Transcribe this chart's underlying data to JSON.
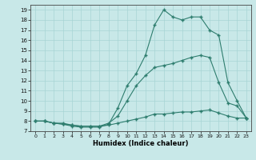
{
  "title": "",
  "xlabel": "Humidex (Indice chaleur)",
  "bg_color": "#c8e8e8",
  "line_color": "#2e7d6e",
  "grid_color": "#a8d4d4",
  "xlim": [
    -0.5,
    23.5
  ],
  "ylim": [
    7,
    19.5
  ],
  "xticks": [
    0,
    1,
    2,
    3,
    4,
    5,
    6,
    7,
    8,
    9,
    10,
    11,
    12,
    13,
    14,
    15,
    16,
    17,
    18,
    19,
    20,
    21,
    22,
    23
  ],
  "yticks": [
    7,
    8,
    9,
    10,
    11,
    12,
    13,
    14,
    15,
    16,
    17,
    18,
    19
  ],
  "line1_x": [
    0,
    1,
    2,
    3,
    4,
    5,
    6,
    7,
    8,
    9,
    10,
    11,
    12,
    13,
    14,
    15,
    16,
    17,
    18,
    19,
    20,
    21,
    22,
    23
  ],
  "line1_y": [
    8,
    8,
    7.8,
    7.7,
    7.6,
    7.5,
    7.5,
    7.5,
    7.6,
    7.8,
    8.0,
    8.2,
    8.4,
    8.7,
    8.7,
    8.8,
    8.9,
    8.9,
    9.0,
    9.1,
    8.8,
    8.5,
    8.3,
    8.3
  ],
  "line2_x": [
    0,
    1,
    2,
    3,
    4,
    5,
    6,
    7,
    8,
    9,
    10,
    11,
    12,
    13,
    14,
    15,
    16,
    17,
    18,
    19,
    20,
    21,
    22,
    23
  ],
  "line2_y": [
    8,
    8,
    7.8,
    7.8,
    7.6,
    7.5,
    7.5,
    7.5,
    7.8,
    8.5,
    10.0,
    11.5,
    12.5,
    13.3,
    13.5,
    13.7,
    14.0,
    14.3,
    14.5,
    14.3,
    11.8,
    9.8,
    9.5,
    8.3
  ],
  "line3_x": [
    0,
    1,
    2,
    3,
    4,
    5,
    6,
    7,
    8,
    9,
    10,
    11,
    12,
    13,
    14,
    15,
    16,
    17,
    18,
    19,
    20,
    21,
    22,
    23
  ],
  "line3_y": [
    8,
    8,
    7.8,
    7.7,
    7.5,
    7.4,
    7.4,
    7.4,
    7.7,
    9.3,
    11.5,
    12.7,
    14.5,
    17.5,
    19.0,
    18.3,
    18.0,
    18.3,
    18.3,
    17.0,
    16.5,
    11.8,
    10.0,
    8.3
  ]
}
